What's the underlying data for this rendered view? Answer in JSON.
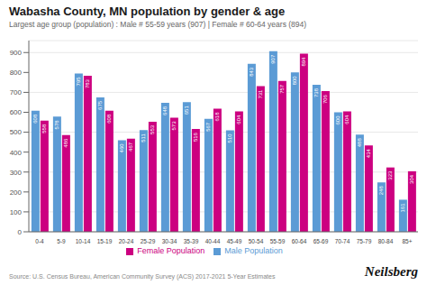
{
  "chart_data": {
    "type": "bar",
    "title": "Wabasha County, MN population by gender & age",
    "subtitle": "Largest age group (population) : Male # 55-59 years (907) | Female # 60-64 years (894)",
    "categories": [
      "0-4",
      "5-9",
      "10-14",
      "15-19",
      "20-24",
      "25-29",
      "30-34",
      "35-39",
      "40-44",
      "45-49",
      "50-54",
      "55-59",
      "60-64",
      "65-69",
      "70-74",
      "75-79",
      "80-84",
      "85+"
    ],
    "series": [
      {
        "name": "Male Population",
        "color": "#5B9BD5",
        "values": [
          608,
          578,
          795,
          675,
          460,
          511,
          648,
          651,
          567,
          510,
          843,
          907,
          800,
          738,
          600,
          488,
          248,
          161
        ]
      },
      {
        "name": "Female Population",
        "color": "#CC0080",
        "values": [
          558,
          486,
          783,
          608,
          467,
          553,
          573,
          516,
          618,
          604,
          731,
          757,
          894,
          706,
          604,
          434,
          323,
          304
        ]
      }
    ],
    "ylim": [
      0,
      960
    ],
    "yticks": [
      0,
      100,
      200,
      300,
      400,
      500,
      600,
      700,
      800,
      900
    ],
    "grid": true,
    "legend": "bottom",
    "data_labels": true,
    "annotations": [
      "Source: U.S. Census Bureau, American Community Survey (ACS) 2017-2021 5-Year Estimates",
      "Neilsberg"
    ]
  }
}
